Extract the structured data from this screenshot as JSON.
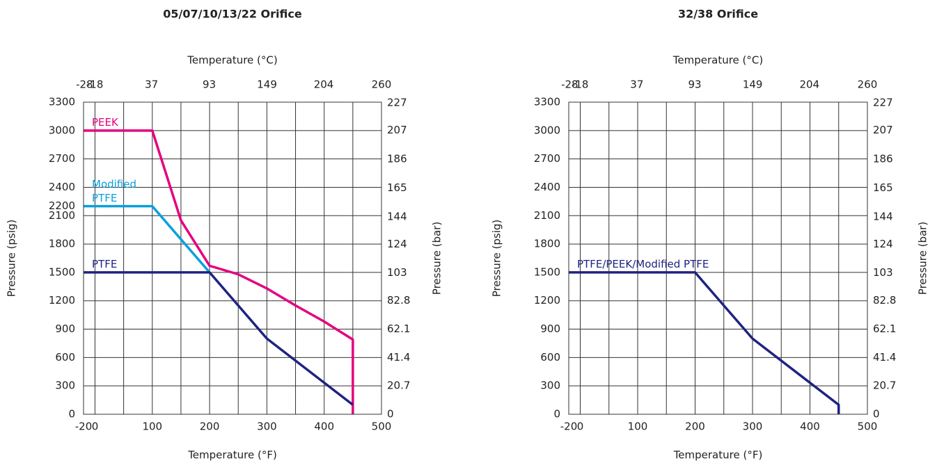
{
  "chart_data": [
    {
      "type": "line",
      "title": "05/07/10/13/22 Orifice",
      "xlabel": "Temperature (°F)",
      "x2label": "Temperature (°C)",
      "ylabel": "Pressure (psig)",
      "y2label": "Pressure (bar)",
      "xlim": [
        -20,
        500
      ],
      "xticks": [
        -20,
        0,
        100,
        200,
        300,
        400,
        500
      ],
      "xgrid": [
        -20,
        0,
        50,
        100,
        150,
        200,
        250,
        300,
        350,
        400,
        450,
        500
      ],
      "x2lim": [
        -28.9,
        260
      ],
      "x2ticks": [
        -28,
        -18,
        37,
        93,
        149,
        204,
        260
      ],
      "ylim": [
        0,
        3300
      ],
      "yticks": [
        0,
        300,
        600,
        900,
        1200,
        1500,
        1800,
        2100,
        2200,
        2400,
        2700,
        3000,
        3300
      ],
      "ygrid": [
        0,
        300,
        600,
        900,
        1200,
        1500,
        1800,
        2100,
        2400,
        2700,
        3000,
        3300
      ],
      "y2lim": [
        0,
        227.5
      ],
      "y2ticks": [
        0,
        20.7,
        41.4,
        62.1,
        82.8,
        103,
        124,
        144,
        165,
        186,
        207,
        227
      ],
      "grid": true,
      "series": [
        {
          "name": "PEEK",
          "color": "#e5007e",
          "x": [
            -20,
            100,
            150,
            200,
            250,
            300,
            350,
            400,
            450,
            450
          ],
          "values": [
            3000,
            3000,
            2050,
            1570,
            1480,
            1330,
            1150,
            980,
            790,
            0
          ]
        },
        {
          "name": "Modified PTFE",
          "color": "#0aa0dc",
          "x": [
            -20,
            100,
            200
          ],
          "values": [
            2200,
            2200,
            1500
          ]
        },
        {
          "name": "PTFE",
          "color": "#1e2380",
          "x": [
            -20,
            200,
            300,
            450
          ],
          "values": [
            1500,
            1500,
            800,
            100
          ]
        }
      ]
    },
    {
      "type": "line",
      "title": "32/38 Orifice",
      "xlabel": "Temperature (°F)",
      "x2label": "Temperature (°C)",
      "ylabel": "Pressure (psig)",
      "y2label": "Pressure (bar)",
      "xlim": [
        -20,
        500
      ],
      "xticks": [
        -20,
        0,
        100,
        200,
        300,
        400,
        500
      ],
      "xgrid": [
        -20,
        0,
        50,
        100,
        150,
        200,
        250,
        300,
        350,
        400,
        450,
        500
      ],
      "x2lim": [
        -28.9,
        260
      ],
      "x2ticks": [
        -28,
        -18,
        37,
        93,
        149,
        204,
        260
      ],
      "ylim": [
        0,
        3300
      ],
      "yticks": [
        0,
        300,
        600,
        900,
        1200,
        1500,
        1800,
        2100,
        2400,
        2700,
        3000,
        3300
      ],
      "ygrid": [
        0,
        300,
        600,
        900,
        1200,
        1500,
        1800,
        2100,
        2400,
        2700,
        3000,
        3300
      ],
      "y2lim": [
        0,
        227.5
      ],
      "y2ticks": [
        0,
        20.7,
        41.4,
        62.1,
        82.8,
        103,
        124,
        144,
        165,
        186,
        207,
        227
      ],
      "grid": true,
      "series": [
        {
          "name": "PTFE/PEEK/Modified PTFE",
          "color": "#1e2380",
          "x": [
            -20,
            200,
            300,
            450,
            450
          ],
          "values": [
            1500,
            1500,
            800,
            100,
            0
          ]
        }
      ]
    }
  ]
}
